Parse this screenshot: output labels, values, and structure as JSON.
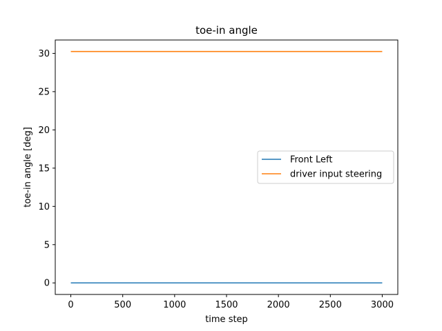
{
  "chart_data": {
    "type": "line",
    "title": "toe-in angle",
    "xlabel": "time step",
    "ylabel": "toe-in angle [deg]",
    "xlim": [
      -150,
      3150
    ],
    "ylim": [
      -1.51,
      31.75
    ],
    "xticks": [
      0,
      500,
      1000,
      1500,
      2000,
      2500,
      3000
    ],
    "yticks": [
      0,
      5,
      10,
      15,
      20,
      25,
      30
    ],
    "grid": false,
    "legend_position": "center-right",
    "series": [
      {
        "name": "Front Left",
        "color": "#1f77b4",
        "x": [
          0,
          3000
        ],
        "y": [
          0.0,
          0.0
        ]
      },
      {
        "name": "driver input steering",
        "color": "#ff7f0e",
        "x": [
          0,
          3000
        ],
        "y": [
          30.25,
          30.25
        ]
      }
    ]
  }
}
